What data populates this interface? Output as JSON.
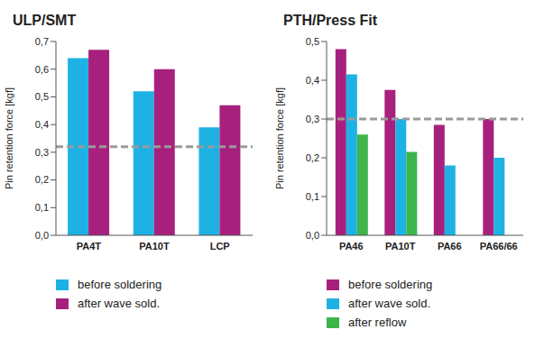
{
  "chart_data": [
    {
      "type": "bar",
      "title": "ULP/SMT",
      "y_label": "Pin retention force [kgf]",
      "categories": [
        "PA4T",
        "PA10T",
        "LCP"
      ],
      "series": [
        {
          "name": "before soldering",
          "color": "#1eb2e4",
          "values": [
            0.64,
            0.52,
            0.39
          ]
        },
        {
          "name": "after wave sold.",
          "color": "#a8207e",
          "values": [
            0.67,
            0.6,
            0.47
          ]
        }
      ],
      "ylim": [
        0,
        0.7
      ],
      "yticks": [
        {
          "value": 0,
          "label": "0,0"
        },
        {
          "value": 0.1,
          "label": "0,1"
        },
        {
          "value": 0.2,
          "label": "0,2"
        },
        {
          "value": 0.3,
          "label": "0,3"
        },
        {
          "value": 0.4,
          "label": "0,4"
        },
        {
          "value": 0.5,
          "label": "0,5"
        },
        {
          "value": 0.6,
          "label": "0,6"
        },
        {
          "value": 0.7,
          "label": "0,7"
        }
      ],
      "reference_line": 0.32,
      "grid": false,
      "legend": "bottom"
    },
    {
      "type": "bar",
      "title": "PTH/Press Fit",
      "y_label": "Pin retention force [kgf]",
      "categories": [
        "PA46",
        "PA10T",
        "PA66",
        "PA66/66"
      ],
      "series": [
        {
          "name": "before soldering",
          "color": "#a8207e",
          "values": [
            0.48,
            0.375,
            0.285,
            0.3
          ]
        },
        {
          "name": "after wave sold.",
          "color": "#1eb2e4",
          "values": [
            0.415,
            0.3,
            0.18,
            0.2
          ]
        },
        {
          "name": "after reflow",
          "color": "#3cb54a",
          "values": [
            0.26,
            0.215,
            null,
            null
          ]
        }
      ],
      "ylim": [
        0,
        0.5
      ],
      "yticks": [
        {
          "value": 0,
          "label": "0,0"
        },
        {
          "value": 0.1,
          "label": "0,1"
        },
        {
          "value": 0.2,
          "label": "0,2"
        },
        {
          "value": 0.3,
          "label": "0,3"
        },
        {
          "value": 0.4,
          "label": "0,4"
        },
        {
          "value": 0.5,
          "label": "0,5"
        }
      ],
      "reference_line": 0.3,
      "grid": false,
      "legend": "bottom"
    }
  ]
}
